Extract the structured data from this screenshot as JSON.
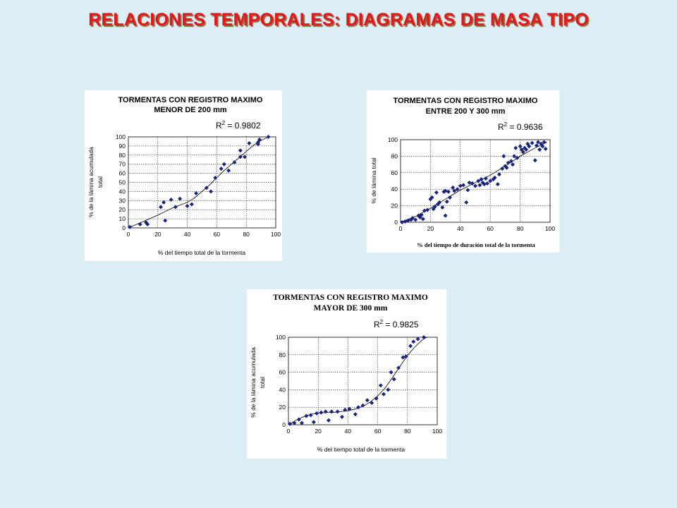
{
  "slide_title": "RELACIONES TEMPORALES: DIAGRAMAS DE MASA TIPO",
  "chart_data": [
    {
      "id": "chart1",
      "type": "scatter",
      "title": "TORMENTAS CON REGISTRO MAXIMO",
      "subtitle": "MENOR DE 200 mm",
      "xlabel": "% del tiempo total de la tormenta",
      "ylabel_lines": [
        "% de la lámina acumulada",
        "total"
      ],
      "r2_label": "R",
      "r2_value": " = 0.9802",
      "xlim": [
        0,
        100
      ],
      "ylim": [
        0,
        100
      ],
      "xticks": [
        "0",
        "20",
        "40",
        "60",
        "80",
        "100"
      ],
      "yticks": [
        "0",
        "10",
        "20",
        "30",
        "40",
        "50",
        "60",
        "70",
        "80",
        "90",
        "100"
      ],
      "point_color": "#1a237e",
      "points": [
        [
          1,
          1
        ],
        [
          8,
          4
        ],
        [
          12,
          6
        ],
        [
          13,
          4
        ],
        [
          22,
          23
        ],
        [
          24,
          28
        ],
        [
          25,
          8
        ],
        [
          29,
          31
        ],
        [
          32,
          23
        ],
        [
          35,
          32
        ],
        [
          40,
          24
        ],
        [
          43,
          26
        ],
        [
          46,
          38
        ],
        [
          53,
          44
        ],
        [
          56,
          40
        ],
        [
          59,
          55
        ],
        [
          63,
          65
        ],
        [
          65,
          70
        ],
        [
          68,
          63
        ],
        [
          72,
          72
        ],
        [
          76,
          78
        ],
        [
          76,
          85
        ],
        [
          79,
          78
        ],
        [
          82,
          93
        ],
        [
          88,
          94
        ],
        [
          88,
          92
        ],
        [
          89,
          97
        ],
        [
          95,
          100
        ]
      ],
      "trend": [
        [
          0,
          0
        ],
        [
          10,
          7
        ],
        [
          20,
          14
        ],
        [
          25,
          18
        ],
        [
          30,
          22
        ],
        [
          35,
          25
        ],
        [
          40,
          28
        ],
        [
          45,
          33
        ],
        [
          50,
          40
        ],
        [
          55,
          47
        ],
        [
          60,
          55
        ],
        [
          65,
          63
        ],
        [
          70,
          70
        ],
        [
          75,
          77
        ],
        [
          80,
          84
        ],
        [
          85,
          91
        ],
        [
          90,
          96
        ],
        [
          95,
          100
        ]
      ]
    },
    {
      "id": "chart2",
      "type": "scatter",
      "title": "TORMENTAS CON REGISTRO MAXIMO",
      "subtitle": "ENTRE 200 Y 300 mm",
      "xlabel": "% del tiempo de duración total de la tormenta",
      "ylabel_lines": [
        "% de lámina total"
      ],
      "r2_label": "R",
      "r2_value": " = 0.9636",
      "xlim": [
        0,
        100
      ],
      "ylim": [
        0,
        100
      ],
      "xticks": [
        "0",
        "20",
        "40",
        "60",
        "80",
        "100"
      ],
      "yticks": [
        "0",
        "20",
        "40",
        "60",
        "80",
        "100"
      ],
      "point_color": "#1a237e",
      "points": [
        [
          1,
          0
        ],
        [
          3,
          1
        ],
        [
          5,
          2
        ],
        [
          7,
          3
        ],
        [
          8,
          5
        ],
        [
          10,
          3
        ],
        [
          12,
          8
        ],
        [
          13,
          6
        ],
        [
          14,
          9
        ],
        [
          15,
          4
        ],
        [
          16,
          14
        ],
        [
          18,
          15
        ],
        [
          20,
          28
        ],
        [
          21,
          30
        ],
        [
          22,
          16
        ],
        [
          23,
          19
        ],
        [
          24,
          36
        ],
        [
          25,
          22
        ],
        [
          26,
          24
        ],
        [
          28,
          18
        ],
        [
          29,
          37
        ],
        [
          30,
          38
        ],
        [
          30,
          8
        ],
        [
          31,
          25
        ],
        [
          32,
          37
        ],
        [
          33,
          30
        ],
        [
          35,
          42
        ],
        [
          36,
          38
        ],
        [
          38,
          40
        ],
        [
          40,
          44
        ],
        [
          42,
          45
        ],
        [
          44,
          24
        ],
        [
          45,
          39
        ],
        [
          46,
          48
        ],
        [
          48,
          47
        ],
        [
          50,
          44
        ],
        [
          52,
          50
        ],
        [
          53,
          45
        ],
        [
          54,
          52
        ],
        [
          55,
          48
        ],
        [
          56,
          46
        ],
        [
          57,
          53
        ],
        [
          58,
          47
        ],
        [
          60,
          50
        ],
        [
          62,
          52
        ],
        [
          63,
          54
        ],
        [
          65,
          46
        ],
        [
          66,
          58
        ],
        [
          68,
          65
        ],
        [
          69,
          80
        ],
        [
          70,
          68
        ],
        [
          71,
          66
        ],
        [
          72,
          72
        ],
        [
          74,
          74
        ],
        [
          75,
          70
        ],
        [
          76,
          80
        ],
        [
          77,
          90
        ],
        [
          78,
          78
        ],
        [
          80,
          92
        ],
        [
          81,
          88
        ],
        [
          82,
          85
        ],
        [
          83,
          90
        ],
        [
          84,
          88
        ],
        [
          85,
          95
        ],
        [
          86,
          92
        ],
        [
          88,
          96
        ],
        [
          90,
          75
        ],
        [
          91,
          93
        ],
        [
          92,
          97
        ],
        [
          93,
          88
        ],
        [
          94,
          95
        ],
        [
          95,
          92
        ],
        [
          96,
          97
        ],
        [
          97,
          89
        ]
      ],
      "trend": [
        [
          0,
          0
        ],
        [
          10,
          7
        ],
        [
          20,
          17
        ],
        [
          30,
          28
        ],
        [
          40,
          39
        ],
        [
          50,
          48
        ],
        [
          60,
          57
        ],
        [
          70,
          68
        ],
        [
          80,
          80
        ],
        [
          90,
          90
        ],
        [
          98,
          97
        ]
      ]
    },
    {
      "id": "chart3",
      "type": "scatter",
      "title": "TORMENTAS CON REGISTRO MAXIMO",
      "subtitle": "MAYOR DE 300 mm",
      "xlabel": "% del tiempo total de la tormenta",
      "ylabel_lines": [
        "% de la lámina acumulada",
        "total"
      ],
      "r2_label": "R",
      "r2_value": " = 0.9825",
      "xlim": [
        0,
        100
      ],
      "ylim": [
        0,
        100
      ],
      "xticks": [
        "0",
        "20",
        "40",
        "60",
        "80",
        "100"
      ],
      "yticks": [
        "0",
        "20",
        "40",
        "60",
        "80",
        "100"
      ],
      "point_color": "#1a237e",
      "points": [
        [
          1,
          1
        ],
        [
          4,
          2
        ],
        [
          7,
          6
        ],
        [
          9,
          2
        ],
        [
          12,
          10
        ],
        [
          15,
          11
        ],
        [
          17,
          3
        ],
        [
          19,
          13
        ],
        [
          22,
          14
        ],
        [
          25,
          15
        ],
        [
          27,
          5
        ],
        [
          29,
          15
        ],
        [
          33,
          15
        ],
        [
          36,
          9
        ],
        [
          38,
          17
        ],
        [
          41,
          18
        ],
        [
          45,
          12
        ],
        [
          47,
          20
        ],
        [
          50,
          22
        ],
        [
          53,
          28
        ],
        [
          56,
          25
        ],
        [
          59,
          30
        ],
        [
          62,
          45
        ],
        [
          64,
          35
        ],
        [
          67,
          40
        ],
        [
          69,
          60
        ],
        [
          71,
          52
        ],
        [
          74,
          65
        ],
        [
          77,
          77
        ],
        [
          79,
          78
        ],
        [
          82,
          90
        ],
        [
          84,
          95
        ],
        [
          87,
          98
        ],
        [
          91,
          100
        ]
      ],
      "trend": [
        [
          0,
          0
        ],
        [
          5,
          5
        ],
        [
          10,
          9
        ],
        [
          15,
          12
        ],
        [
          20,
          13
        ],
        [
          25,
          14
        ],
        [
          30,
          14
        ],
        [
          35,
          15
        ],
        [
          40,
          16
        ],
        [
          45,
          18
        ],
        [
          50,
          21
        ],
        [
          55,
          26
        ],
        [
          60,
          33
        ],
        [
          65,
          42
        ],
        [
          70,
          54
        ],
        [
          75,
          67
        ],
        [
          80,
          79
        ],
        [
          85,
          89
        ],
        [
          90,
          97
        ],
        [
          93,
          100
        ]
      ]
    }
  ]
}
